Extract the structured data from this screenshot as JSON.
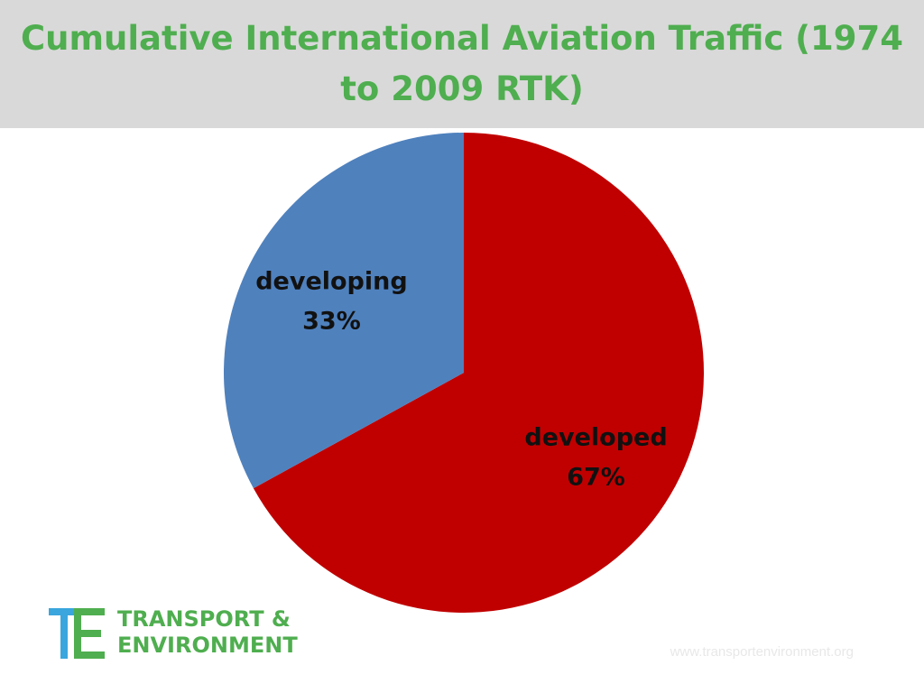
{
  "colors": {
    "title": "#4fae4f",
    "title_band": "#d9d9d9",
    "logo_blue": "#3aa6dd",
    "logo_green": "#4fae4f"
  },
  "chart_data": {
    "type": "pie",
    "title": "Cumulative International Aviation Traffic  (1974 to 2009 RTK)",
    "start_angle_deg": 0,
    "direction": "clockwise",
    "legend": "none",
    "slices": [
      {
        "category": "developed",
        "value": 67,
        "percent_label": "67%",
        "color": "#c00000"
      },
      {
        "category": "developing",
        "value": 33,
        "percent_label": "33%",
        "color": "#4f81bd"
      }
    ]
  },
  "logo": {
    "line1": "TRANSPORT &",
    "line2": "ENVIRONMENT"
  },
  "footer": {
    "url": "www.transportenvironment.org"
  }
}
